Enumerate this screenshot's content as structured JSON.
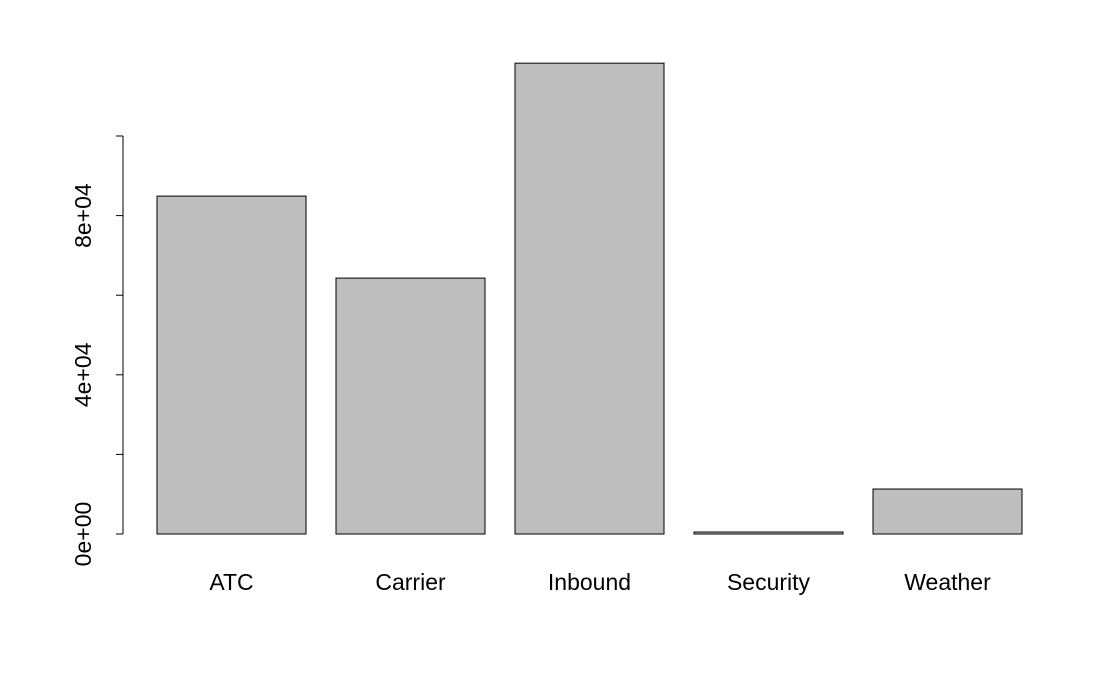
{
  "chart_data": {
    "type": "bar",
    "categories": [
      "ATC",
      "Carrier",
      "Inbound",
      "Security",
      "Weather"
    ],
    "values": [
      84900,
      64300,
      118300,
      500,
      11300
    ],
    "color": "#bebebe",
    "ylim": [
      0,
      123000
    ],
    "yticks": [
      {
        "value": 0,
        "label": "0e+00"
      },
      {
        "value": 40000,
        "label": "4e+04"
      },
      {
        "value": 80000,
        "label": "8e+04"
      }
    ],
    "yticks_unlabeled": [
      20000,
      60000,
      100000
    ],
    "grid": false
  }
}
